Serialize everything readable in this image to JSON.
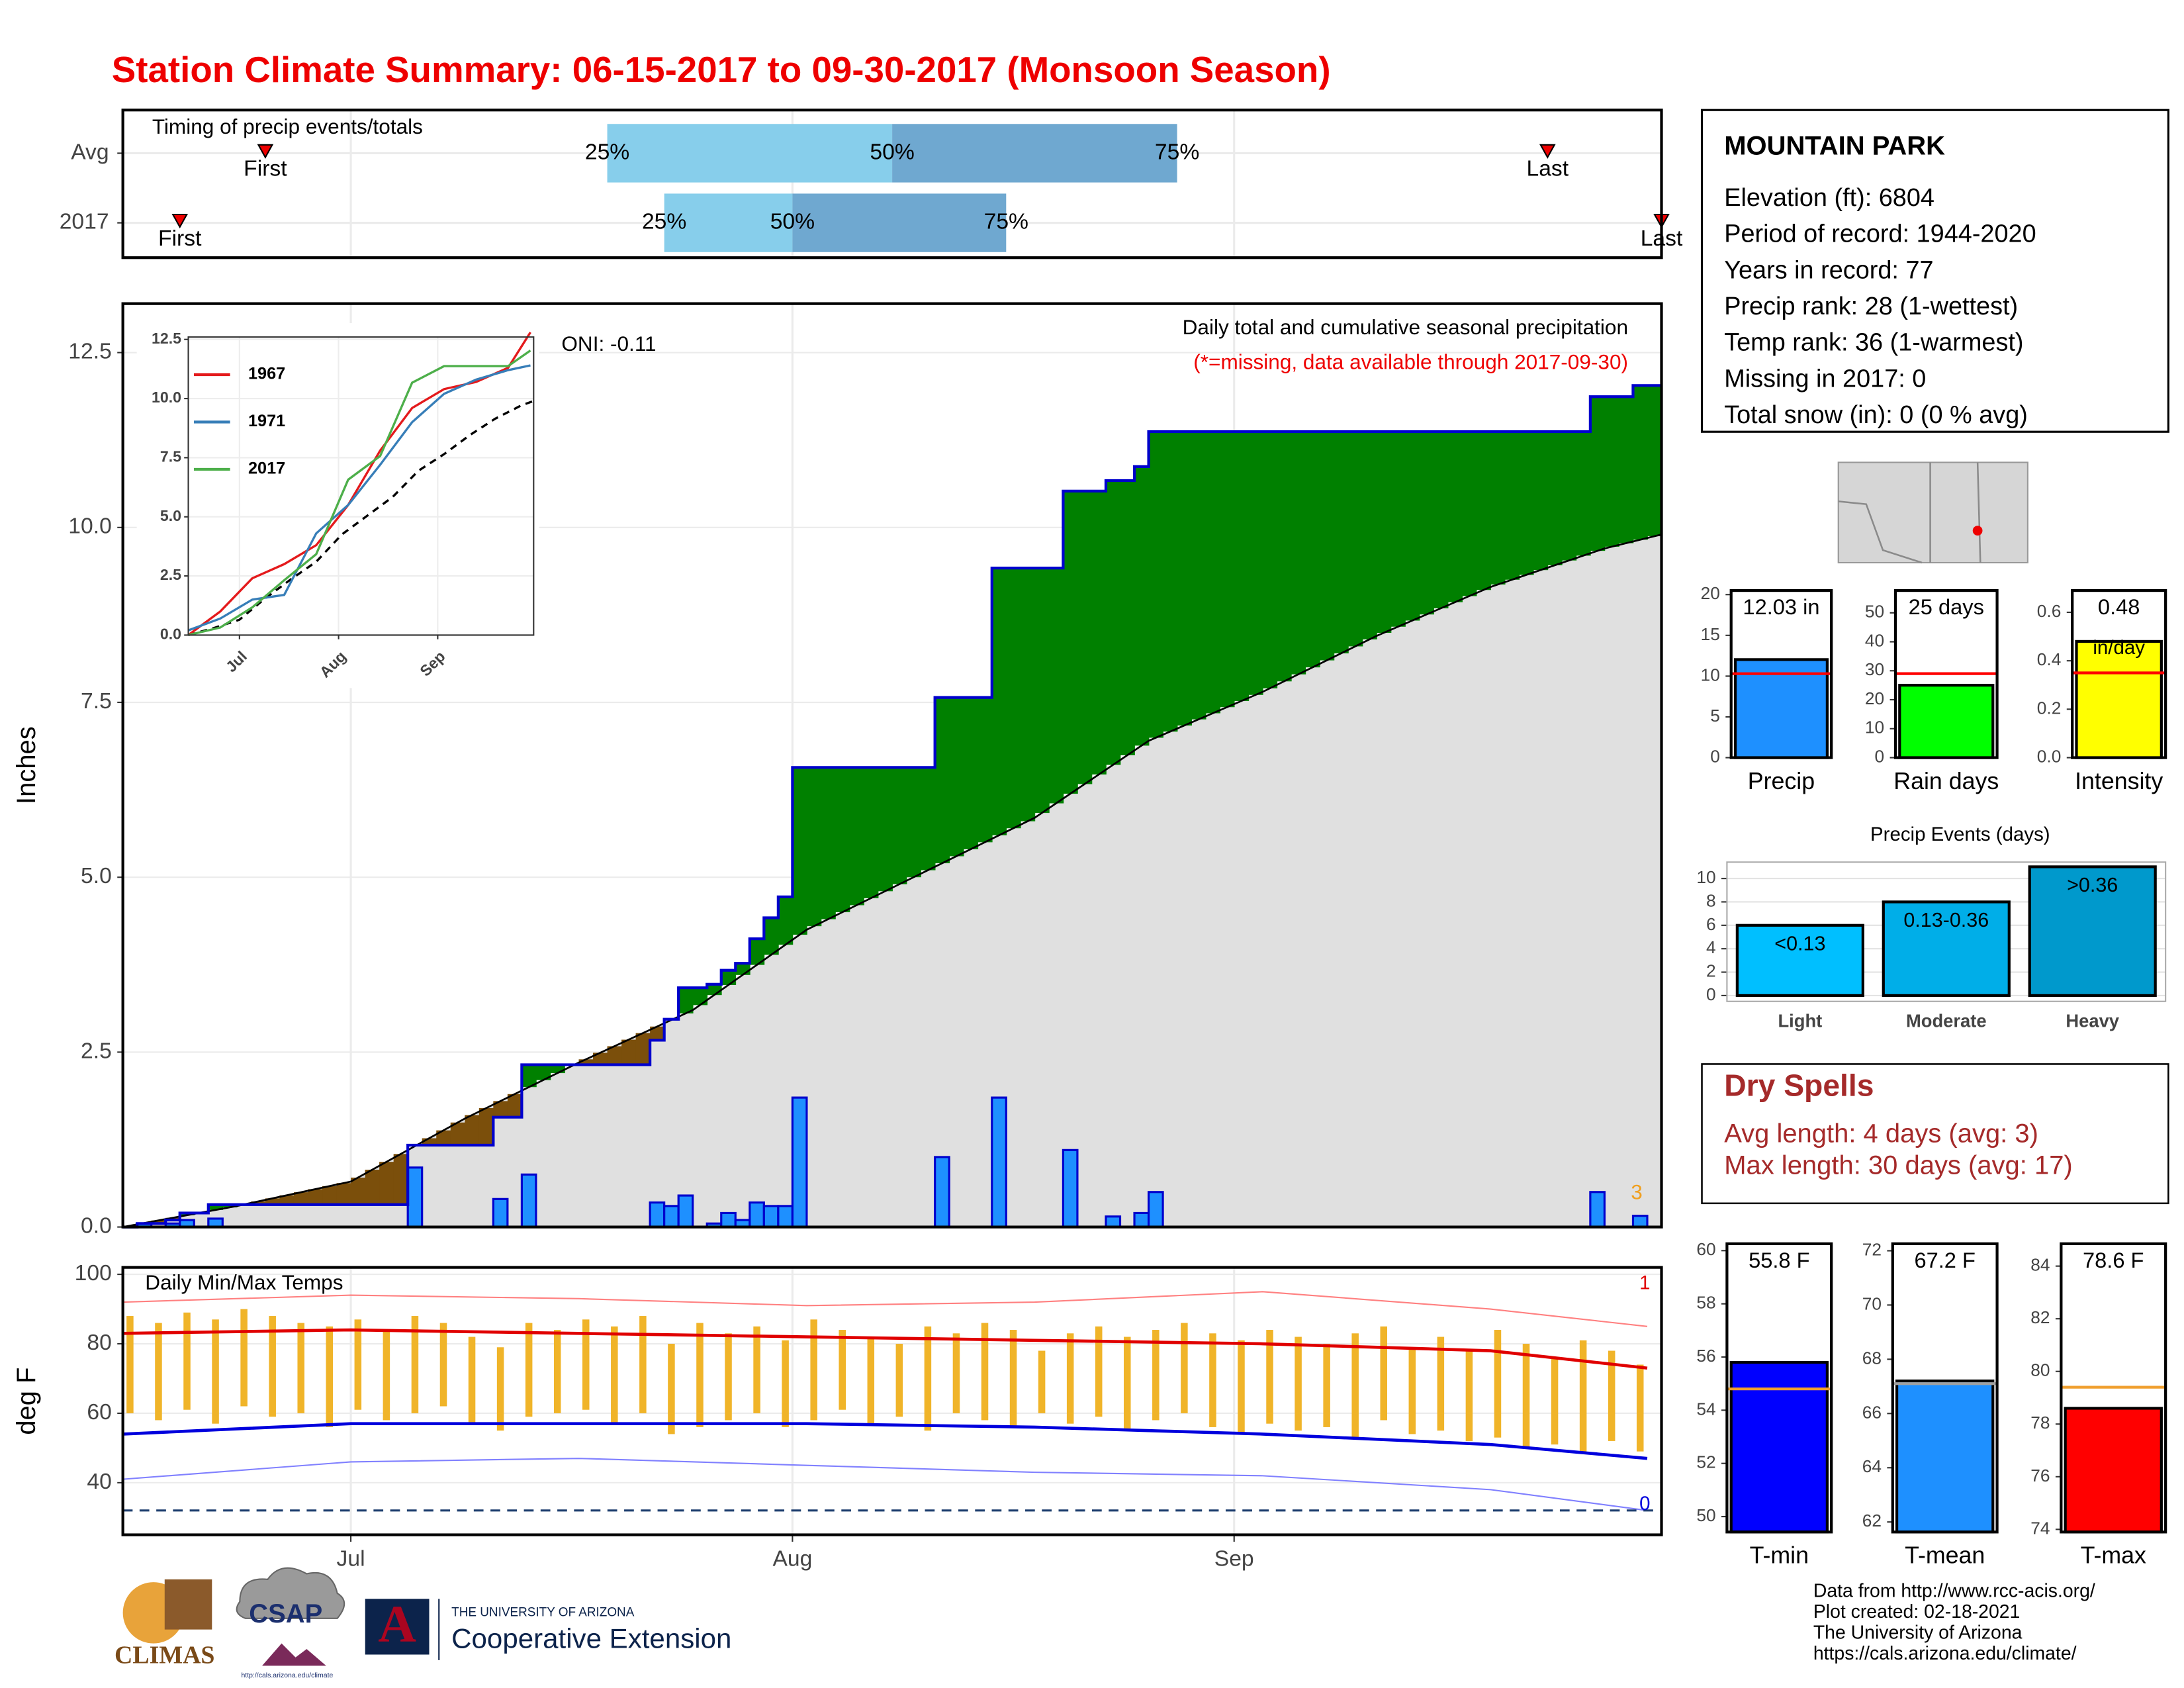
{
  "title": "Station Climate Summary: 06-15-2017 to 09-30-2017 (Monsoon Season)",
  "chart_data": [
    {
      "type": "timing",
      "subtitle": "Timing of precip events/totals",
      "xlim": [
        0,
        108
      ],
      "xticks": [
        16,
        47,
        78
      ],
      "quantile_labels": [
        "25%",
        "50%",
        "75%"
      ],
      "first_label": "First",
      "last_label": "Last",
      "colors": [
        "#87ceeb",
        "#6fa8d0"
      ],
      "rows": [
        {
          "name": "Avg",
          "first": 10,
          "q25": 34,
          "q50": 54,
          "q75": 74,
          "last": 100
        },
        {
          "name": "2017",
          "first": 4,
          "q25": 38,
          "q50": 47,
          "q75": 62,
          "last": 108
        }
      ]
    },
    {
      "type": "precip",
      "subtitle": "Daily total and cumulative seasonal precipitation",
      "note": "(*=missing, data available through 2017-09-30)",
      "oni": "ONI: -0.11",
      "ylabel": "Inches",
      "count_label": "3",
      "xlim": [
        0,
        108
      ],
      "xticks": [
        16,
        47,
        78
      ],
      "ylim": [
        0,
        13.2
      ],
      "yticks": [
        {
          "value": 0,
          "label": "0.0"
        },
        {
          "value": 2.5,
          "label": "2.5"
        },
        {
          "value": 5,
          "label": "5.0"
        },
        {
          "value": 7.5,
          "label": "7.5"
        },
        {
          "value": 10,
          "label": "10.0"
        },
        {
          "value": 12.5,
          "label": "12.5"
        }
      ],
      "grid": true,
      "x": [
        1,
        3,
        4,
        6,
        20,
        26,
        28,
        37,
        38,
        39,
        41,
        42,
        43,
        44,
        45,
        46,
        47,
        57,
        61,
        66,
        69,
        71,
        72,
        103,
        106
      ],
      "values": [
        0.05,
        0.05,
        0.1,
        0.12,
        0.85,
        0.4,
        0.75,
        0.35,
        0.3,
        0.45,
        0.05,
        0.2,
        0.1,
        0.35,
        0.3,
        0.3,
        1.85,
        1.0,
        1.85,
        1.1,
        0.15,
        0.2,
        0.5,
        0.5,
        0.16
      ],
      "color": "#1e90ff",
      "line_color": "#0000cd",
      "avg_x": [
        0,
        8,
        16,
        24,
        32,
        40,
        48,
        56,
        64,
        72,
        80,
        88,
        96,
        104,
        108
      ],
      "avg": [
        0,
        0.3,
        0.65,
        1.55,
        2.35,
        3.1,
        4.25,
        5.05,
        5.85,
        6.95,
        7.65,
        8.45,
        9.15,
        9.7,
        9.9
      ],
      "above_color": "#008000",
      "below_color": "#7b4f0b",
      "avg_fill": "#e0e0e0",
      "count_color": "#f0a020"
    },
    {
      "type": "line",
      "xlim": [
        0,
        108
      ],
      "xticks": [
        {
          "value": 16,
          "label": "Jul"
        },
        {
          "value": 47,
          "label": "Aug"
        },
        {
          "value": 78,
          "label": "Sep"
        }
      ],
      "ylim": [
        0,
        12.6
      ],
      "yticks": [
        {
          "value": 0,
          "label": "0.0"
        },
        {
          "value": 2.5,
          "label": "2.5"
        },
        {
          "value": 5,
          "label": "5.0"
        },
        {
          "value": 7.5,
          "label": "7.5"
        },
        {
          "value": 10,
          "label": "10.0"
        },
        {
          "value": 12.5,
          "label": "12.5"
        }
      ],
      "x": [
        0,
        10,
        20,
        30,
        40,
        50,
        60,
        70,
        80,
        90,
        100,
        107
      ],
      "series": [
        {
          "name": "1967",
          "color": "#e41a1c",
          "values": [
            0,
            1.0,
            2.4,
            3.0,
            3.8,
            5.5,
            7.8,
            9.6,
            10.4,
            10.7,
            11.3,
            12.8
          ]
        },
        {
          "name": "1971",
          "color": "#377eb8",
          "values": [
            0.2,
            0.7,
            1.5,
            1.7,
            4.3,
            5.5,
            7.2,
            9.0,
            10.2,
            10.8,
            11.2,
            11.4
          ]
        },
        {
          "name": "2017",
          "color": "#4daf4a",
          "values": [
            0,
            0.32,
            1.17,
            2.32,
            3.42,
            6.57,
            7.57,
            10.67,
            11.37,
            11.37,
            11.37,
            12.03
          ]
        }
      ]
    },
    {
      "type": "temps",
      "title": "Daily Min/Max Temps",
      "ylabel": "deg F",
      "xlim": [
        0,
        108
      ],
      "xticks": [
        {
          "value": 16,
          "label": "Jul"
        },
        {
          "value": 47,
          "label": "Aug"
        },
        {
          "value": 78,
          "label": "Sep"
        }
      ],
      "ylim": [
        25,
        102
      ],
      "yticks": [
        40,
        60,
        80,
        100
      ],
      "grid": true,
      "x": [
        0,
        2,
        4,
        6,
        8,
        10,
        12,
        14,
        16,
        18,
        20,
        22,
        24,
        26,
        28,
        30,
        32,
        34,
        36,
        38,
        40,
        42,
        44,
        46,
        48,
        50,
        52,
        54,
        56,
        58,
        60,
        62,
        64,
        66,
        68,
        70,
        72,
        74,
        76,
        78,
        80,
        82,
        84,
        86,
        88,
        90,
        92,
        94,
        96,
        98,
        100,
        102,
        104,
        106
      ],
      "max": [
        88,
        86,
        89,
        87,
        90,
        88,
        86,
        85,
        87,
        84,
        88,
        86,
        82,
        79,
        86,
        84,
        87,
        85,
        88,
        80,
        86,
        83,
        85,
        81,
        87,
        84,
        82,
        80,
        85,
        83,
        86,
        84,
        78,
        83,
        85,
        82,
        84,
        86,
        83,
        81,
        84,
        82,
        80,
        83,
        85,
        79,
        82,
        78,
        84,
        80,
        76,
        81,
        78,
        74
      ],
      "min": [
        60,
        58,
        61,
        57,
        62,
        59,
        60,
        56,
        61,
        58,
        60,
        62,
        57,
        55,
        59,
        60,
        61,
        57,
        60,
        54,
        56,
        58,
        60,
        56,
        58,
        61,
        57,
        59,
        55,
        60,
        58,
        56,
        60,
        57,
        59,
        55,
        58,
        60,
        56,
        54,
        57,
        55,
        56,
        53,
        58,
        54,
        55,
        52,
        53,
        50,
        51,
        49,
        52,
        49
      ],
      "bar_color": "#f0b429",
      "line_x": [
        0,
        16,
        32,
        48,
        64,
        80,
        96,
        107
      ],
      "avg_max": [
        83,
        84,
        83,
        82,
        81,
        80,
        78,
        73
      ],
      "avg_min": [
        54,
        57,
        57,
        57,
        56,
        54,
        51,
        47
      ],
      "record_max": [
        92,
        94,
        93,
        91,
        92,
        95,
        90,
        85
      ],
      "record_min": [
        41,
        46,
        47,
        45,
        43,
        42,
        38,
        32
      ],
      "freezing": 32,
      "record_max_count": "1",
      "record_min_count": "0",
      "colors": {
        "avg_max": "#e00000",
        "avg_min": "#0000dd",
        "record_max": "#ff8080",
        "record_min": "#8080ff",
        "freezing": "#1f3f6f"
      }
    },
    {
      "type": "bar",
      "categories": [
        "Precip"
      ],
      "values": [
        12.03
      ],
      "value_labels": [
        "12.03 in"
      ],
      "avg": 10.3,
      "avg_color": "#ff0000",
      "color": "#1e90ff",
      "ylim": [
        0,
        20.5
      ],
      "yticks": [
        0,
        5,
        10,
        15,
        20
      ]
    },
    {
      "type": "bar",
      "categories": [
        "Rain days"
      ],
      "values": [
        25
      ],
      "value_labels": [
        "25 days"
      ],
      "avg": 29,
      "avg_color": "#ff0000",
      "color": "#00ff00",
      "ylim": [
        0,
        57.7
      ],
      "yticks": [
        0,
        10,
        20,
        30,
        40,
        50
      ]
    },
    {
      "type": "bar",
      "categories": [
        "Intensity"
      ],
      "values": [
        0.48
      ],
      "value_labels": [
        "0.48"
      ],
      "unit": "in/day",
      "avg": 0.35,
      "avg_color": "#ff0000",
      "color": "#ffff00",
      "ylim": [
        0,
        0.69
      ],
      "yticks": [
        {
          "value": 0,
          "label": "0.0"
        },
        0.2,
        0.4,
        0.6
      ]
    },
    {
      "type": "bar",
      "title": "Precip Events (days)",
      "categories": [
        "Light",
        "Moderate",
        "Heavy"
      ],
      "values": [
        6,
        8,
        11
      ],
      "bar_labels": [
        "<0.13",
        "0.13-0.36",
        ">0.36"
      ],
      "colors": [
        "#00bfff",
        "#00aee8",
        "#0099cc"
      ],
      "ylim": [
        -0.5,
        11.4
      ],
      "yticks": [
        0,
        2,
        4,
        6,
        8,
        10
      ],
      "grid": true
    },
    {
      "type": "bar",
      "categories": [
        "T-min"
      ],
      "values": [
        55.8
      ],
      "value_labels": [
        "55.8 F"
      ],
      "avg": 54.8,
      "avg_color": "#f0a030",
      "color": "#0000ff",
      "ylim": [
        49.42,
        60.26
      ],
      "yticks": [
        50,
        52,
        54,
        56,
        58,
        60
      ]
    },
    {
      "type": "bar",
      "categories": [
        "T-mean"
      ],
      "values": [
        67.2
      ],
      "value_labels": [
        "67.2 F"
      ],
      "avg": 67.1,
      "avg_color": "#a0a0a0",
      "color": "#1e90ff",
      "ylim": [
        61.63,
        72.26
      ],
      "yticks": [
        62,
        64,
        66,
        68,
        70,
        72
      ]
    },
    {
      "type": "bar",
      "categories": [
        "T-max"
      ],
      "values": [
        78.6
      ],
      "value_labels": [
        "78.6 F"
      ],
      "avg": 79.4,
      "avg_color": "#f0a030",
      "color": "#ff0000",
      "ylim": [
        73.9,
        84.85
      ],
      "yticks": [
        74,
        76,
        78,
        80,
        82,
        84
      ]
    }
  ],
  "station": {
    "name": "MOUNTAIN PARK",
    "lines": [
      "Elevation (ft): 6804",
      "Period of record: 1944-2020",
      "Years in record: 77",
      "Precip rank: 28 (1-wettest)",
      "Temp rank: 36 (1-warmest)",
      "Missing in 2017: 0",
      "Total snow (in): 0 (0 % avg)"
    ]
  },
  "dry_spells": {
    "title": "Dry Spells",
    "lines": [
      "Avg length: 4 days (avg: 3)",
      "Max length: 30 days (avg: 17)"
    ]
  },
  "credits": [
    "Data from http://www.rcc-acis.org/",
    "Plot created: 02-18-2021",
    "The University of Arizona",
    "https://cals.arizona.edu/climate/"
  ],
  "logos": {
    "climas": "CLIMAS",
    "csap": "CSAP",
    "csap_url": "http://cals.arizona.edu/climate",
    "university": "THE UNIVERSITY OF ARIZONA",
    "extension": "Cooperative Extension"
  }
}
